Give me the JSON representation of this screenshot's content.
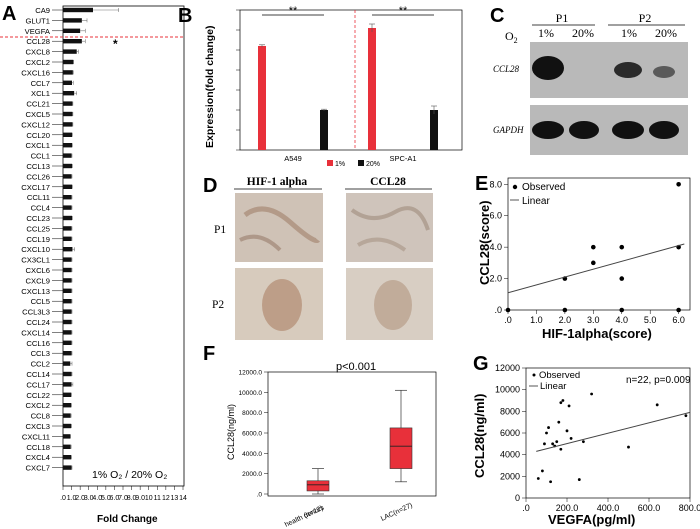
{
  "panel_letters": {
    "a": "A",
    "b": "B",
    "c": "C",
    "d": "D",
    "e": "E",
    "f": "F",
    "g": "G"
  },
  "colors": {
    "red": "#e8303a",
    "black": "#111111",
    "dashed": "#e8303a"
  },
  "chart_data": [
    {
      "panel": "A",
      "type": "bar",
      "orientation": "horizontal",
      "categories": [
        "CA9",
        "GLUT1",
        "VEGFA",
        "CCL28",
        "CXCL8",
        "CXCL2",
        "CXCL16",
        "CCL7",
        "XCL1",
        "CCL21",
        "CXCL5",
        "CXCL12",
        "CCL20",
        "CXCL1",
        "CCL1",
        "CCL13",
        "CCL26",
        "CXCL17",
        "CCL11",
        "CCL4",
        "CCL23",
        "CCL25",
        "CCL19",
        "CXCL10",
        "CX3CL1",
        "CXCL6",
        "CXCL9",
        "CXCL13",
        "CCL5",
        "CCL3L3",
        "CCL24",
        "CXCL14",
        "CCL16",
        "CCL3",
        "CCL2",
        "CCL14",
        "CCL17",
        "CCL22",
        "CXCL2",
        "CCL8",
        "CXCL3",
        "CXCL11",
        "CCL18",
        "CXCL4",
        "CXCL7"
      ],
      "values": [
        3.5,
        2.2,
        2.0,
        2.2,
        1.6,
        1.2,
        1.15,
        1.05,
        1.3,
        1.1,
        1.1,
        1.1,
        1.05,
        1.05,
        1.0,
        1.05,
        1.0,
        1.05,
        1.0,
        1.0,
        1.05,
        1.0,
        1.0,
        1.1,
        1.0,
        1.0,
        1.0,
        1.0,
        1.0,
        1.0,
        1.0,
        1.0,
        1.0,
        1.0,
        0.85,
        1.0,
        1.0,
        0.95,
        0.95,
        0.9,
        0.95,
        0.85,
        0.9,
        0.95,
        1.0
      ],
      "errors": [
        3.0,
        0.6,
        0.6,
        0.4,
        0.2,
        0.05,
        0.05,
        0.15,
        0.3,
        0.05,
        0.05,
        0.05,
        0.05,
        0.05,
        0.05,
        0.05,
        0.05,
        0.05,
        0.05,
        0.05,
        0.05,
        0.05,
        0.05,
        0.25,
        0.05,
        0.05,
        0.05,
        0.05,
        0.05,
        0.05,
        0.05,
        0.05,
        0.05,
        0.05,
        0.2,
        0.05,
        0.15,
        0.05,
        0.05,
        0.05,
        0.05,
        0.05,
        0.05,
        0.05,
        0.05
      ],
      "xlabel": "Fold Change",
      "xticks": [
        ".0",
        "1.0",
        "2.0",
        "3.0",
        "4.0",
        "5.0",
        "6.0",
        "7.0",
        "8.0",
        "9.0",
        "10",
        "11",
        "12",
        "13",
        "14"
      ],
      "xlim": [
        0,
        14
      ],
      "annotation": "1% O₂ / 20% O₂",
      "star": "*",
      "star_row": "CCL28"
    },
    {
      "panel": "B",
      "type": "bar",
      "categories": [
        "A549",
        "SPC-A1"
      ],
      "series": [
        {
          "name": "1%",
          "values": [
            2.6,
            3.05
          ],
          "errors": [
            0.03,
            0.1
          ]
        },
        {
          "name": "20%",
          "values": [
            1.0,
            1.0
          ],
          "errors": [
            0.02,
            0.1
          ]
        }
      ],
      "ylabel": "Expression(fold change)",
      "ylim": [
        0,
        3.5
      ],
      "yticks": [
        "0",
        "0.5",
        "1",
        "1.5",
        "2",
        "2.5",
        "3",
        "3.5"
      ],
      "sig": [
        "**",
        "**"
      ]
    },
    {
      "panel": "E",
      "type": "scatter",
      "series": [
        {
          "name": "Observed",
          "x": [
            0,
            2,
            2,
            3,
            3,
            4,
            4,
            4,
            6,
            6,
            6
          ],
          "y": [
            0,
            2,
            0,
            4,
            3,
            4,
            2,
            0,
            8,
            4,
            0
          ]
        }
      ],
      "fit": {
        "name": "Linear",
        "x": [
          0,
          6.2
        ],
        "y": [
          1.1,
          4.2
        ]
      },
      "xlabel": "HIF-1alpha(score)",
      "ylabel": "CCL28(score)",
      "xlim": [
        0,
        6.4
      ],
      "ylim": [
        0,
        8.4
      ],
      "xticks": [
        ".0",
        "1.0",
        "2.0",
        "3.0",
        "4.0",
        "5.0",
        "6.0"
      ],
      "yticks": [
        ".0",
        "2.0",
        "4.0",
        "6.0",
        "8.0"
      ]
    },
    {
      "panel": "F",
      "type": "box",
      "categories": [
        "health donors\n(n=12)",
        "LAC(n=27)"
      ],
      "boxes": [
        {
          "min": 0,
          "q1": 300,
          "median": 900,
          "q3": 1300,
          "max": 2500
        },
        {
          "min": 1200,
          "q1": 2500,
          "median": 4700,
          "q3": 6500,
          "max": 10200
        }
      ],
      "ylabel": "CCL28(ng/ml)",
      "ylim": [
        0,
        12000
      ],
      "yticks": [
        ".0",
        "2000.0",
        "4000.0",
        "6000.0",
        "8000.0",
        "10000.0",
        "12000.0"
      ],
      "annotation": "p<0.001",
      "cat_labels": [
        "health donors",
        "(n=12)",
        "LAC(n=27)"
      ]
    },
    {
      "panel": "G",
      "type": "scatter",
      "series": [
        {
          "name": "Observed",
          "x": [
            60,
            80,
            90,
            100,
            110,
            120,
            130,
            140,
            150,
            160,
            170,
            170,
            180,
            200,
            210,
            220,
            260,
            280,
            320,
            500,
            640,
            780
          ],
          "y": [
            1800,
            2500,
            5000,
            6000,
            6500,
            1500,
            5000,
            4800,
            5200,
            7000,
            4500,
            8800,
            9000,
            6200,
            8500,
            5500,
            1700,
            5200,
            9600,
            4700,
            8600,
            7600
          ]
        }
      ],
      "fit": {
        "name": "Linear",
        "x": [
          50,
          800
        ],
        "y": [
          4300,
          7900
        ]
      },
      "xlabel": "VEGFA(pg/ml)",
      "ylabel": "CCL28(ng/ml)",
      "xlim": [
        0,
        800
      ],
      "ylim": [
        0,
        12000
      ],
      "xticks": [
        ".0",
        "200.0",
        "400.0",
        "600.0",
        "800.0"
      ],
      "yticks": [
        "0",
        "2000",
        "4000",
        "6000",
        "8000",
        "10000",
        "12000"
      ],
      "annotation": "n=22, p=0.009"
    }
  ],
  "blot": {
    "o2": "O",
    "o2_sub": "2",
    "groups": [
      "P1",
      "P2"
    ],
    "lanes": [
      "1%",
      "20%",
      "1%",
      "20%"
    ],
    "genes": [
      "CCL28",
      "GAPDH"
    ]
  },
  "ihc": {
    "cols": [
      "HIF-1 alpha",
      "CCL28"
    ],
    "rows": [
      "P1",
      "P2"
    ]
  }
}
